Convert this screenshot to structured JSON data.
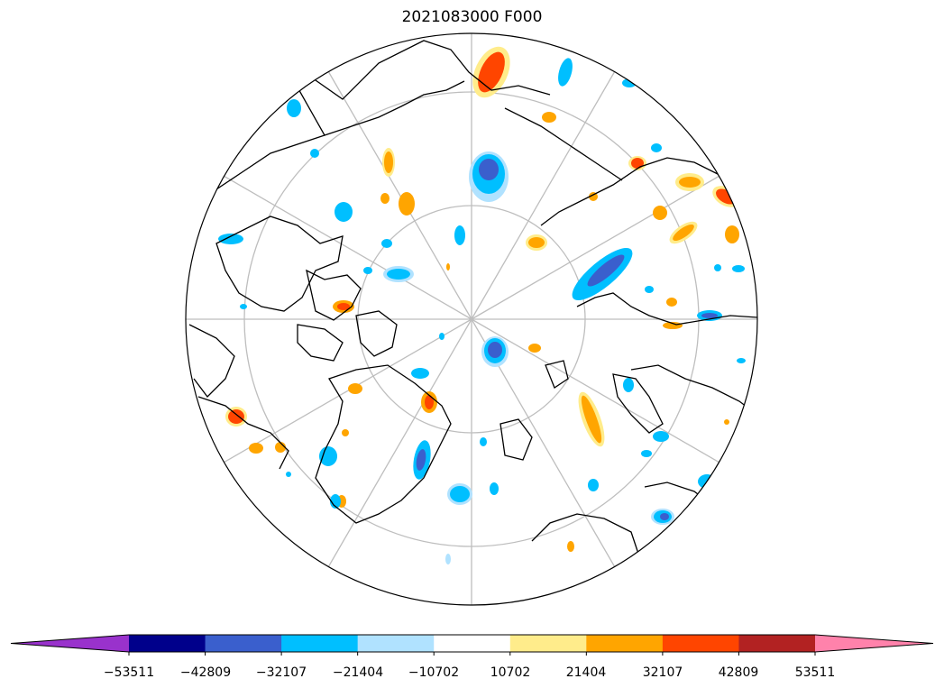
{
  "title": "2021083000 F000",
  "colorbar": {
    "tick_labels": [
      "−53511",
      "−42809",
      "−32107",
      "−21404",
      "−10702",
      "10702",
      "21404",
      "32107",
      "42809",
      "53511"
    ],
    "colors": [
      "#9932cc",
      "#00008b",
      "#3a5fcd",
      "#00bfff",
      "#b0e2ff",
      "#ffffff",
      "#ffec8b",
      "#ffa500",
      "#ff4500",
      "#b22222",
      "#ff82ab"
    ],
    "extend": "both"
  },
  "map": {
    "projection": "north-polar-stereographic",
    "graticule_color": "#bebebe",
    "coastline_color": "#000000",
    "meridian_spacing_deg": 30,
    "parallel_rings": 3
  }
}
